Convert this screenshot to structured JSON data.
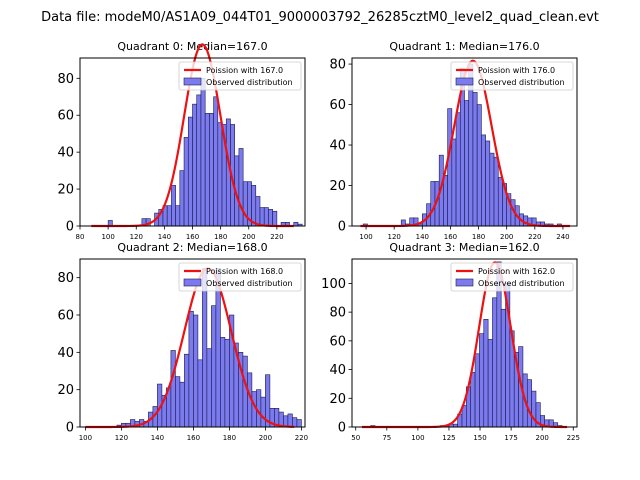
{
  "figure_title": "Data file: modeM0/AS1A09_044T01_9000003792_26285cztM0_level2_quad_clean.evt",
  "legend_labels": {
    "observed": "Observed distribution"
  },
  "colors": {
    "bar": "#7b7bef",
    "bar_edge": "#1a1a4a",
    "curve": "#ee1111"
  },
  "chart_data": [
    {
      "type": "bar",
      "title": "Quadrant 0: Median=167.0",
      "median": 167.0,
      "poisson_label": "Poission with 167.0",
      "bin_width": 3,
      "bins_start": 100,
      "values": [
        3,
        0,
        0,
        0,
        0,
        0,
        0,
        0,
        4,
        4,
        0,
        7,
        9,
        11,
        11,
        22,
        11,
        30,
        48,
        59,
        66,
        71,
        80,
        61,
        61,
        70,
        56,
        55,
        58,
        55,
        38,
        42,
        24,
        24,
        22,
        16,
        10,
        10,
        9,
        8,
        0,
        2,
        2,
        0,
        2,
        1
      ],
      "xlim": [
        80,
        240
      ],
      "ylim": [
        0,
        91
      ],
      "xticks": [
        "80",
        "100",
        "120",
        "140",
        "160",
        "180",
        "200",
        "220"
      ],
      "yticks": [
        "0",
        "20",
        "40",
        "60",
        "80"
      ],
      "curve_x_range": [
        88,
        232
      ]
    },
    {
      "type": "bar",
      "title": "Quadrant 1: Median=176.0",
      "median": 176.0,
      "poisson_label": "Poission with 176.0",
      "bin_width": 3,
      "bins_start": 98,
      "values": [
        1,
        0,
        0,
        0,
        0,
        0,
        0,
        0,
        0,
        3,
        1,
        4,
        4,
        1,
        6,
        11,
        22,
        22,
        35,
        25,
        58,
        43,
        56,
        78,
        62,
        80,
        66,
        60,
        45,
        42,
        36,
        34,
        24,
        21,
        16,
        13,
        10,
        6,
        5,
        4,
        4,
        2,
        2,
        1,
        1,
        0,
        1
      ],
      "xlim": [
        90,
        250
      ],
      "ylim": [
        0,
        83
      ],
      "xticks": [
        "100",
        "120",
        "140",
        "160",
        "180",
        "200",
        "220",
        "240"
      ],
      "yticks": [
        "0",
        "20",
        "40",
        "60",
        "80"
      ],
      "curve_x_range": [
        96,
        245
      ]
    },
    {
      "type": "bar",
      "title": "Quadrant 2: Median=168.0",
      "median": 168.0,
      "poisson_label": "Poission with 168.0",
      "bin_width": 2.5,
      "bins_start": 100,
      "values": [
        0,
        0,
        0,
        0,
        0,
        0,
        0,
        1,
        2,
        2,
        4,
        3,
        4,
        3,
        8,
        11,
        23,
        17,
        21,
        41,
        27,
        24,
        39,
        62,
        60,
        36,
        85,
        42,
        65,
        85,
        48,
        47,
        60,
        45,
        40,
        38,
        29,
        19,
        20,
        16,
        28,
        10,
        10,
        8,
        6,
        7,
        5,
        4
      ],
      "xlim": [
        97,
        222
      ],
      "ylim": [
        0,
        90
      ],
      "xticks": [
        "100",
        "120",
        "140",
        "160",
        "180",
        "200",
        "220"
      ],
      "yticks": [
        "0",
        "20",
        "40",
        "60",
        "80"
      ],
      "curve_x_range": [
        100,
        216
      ]
    },
    {
      "type": "bar",
      "title": "Quadrant 3: Median=162.0",
      "median": 162.0,
      "poisson_label": "Poission with 162.0",
      "bin_width": 3.5,
      "bins_start": 62,
      "values": [
        1,
        0,
        0,
        0,
        0,
        0,
        0,
        0,
        0,
        0,
        0,
        0,
        0,
        0,
        0,
        0,
        1,
        1,
        2,
        2,
        9,
        15,
        28,
        38,
        51,
        65,
        75,
        61,
        90,
        115,
        82,
        100,
        67,
        52,
        56,
        37,
        33,
        25,
        17,
        8,
        5,
        5,
        3,
        1
      ],
      "xlim": [
        47,
        228
      ],
      "ylim": [
        0,
        117
      ],
      "xticks": [
        "50",
        "75",
        "100",
        "125",
        "150",
        "175",
        "200",
        "225"
      ],
      "yticks": [
        "0",
        "20",
        "40",
        "60",
        "80",
        "100"
      ],
      "curve_x_range": [
        55,
        220
      ]
    }
  ]
}
